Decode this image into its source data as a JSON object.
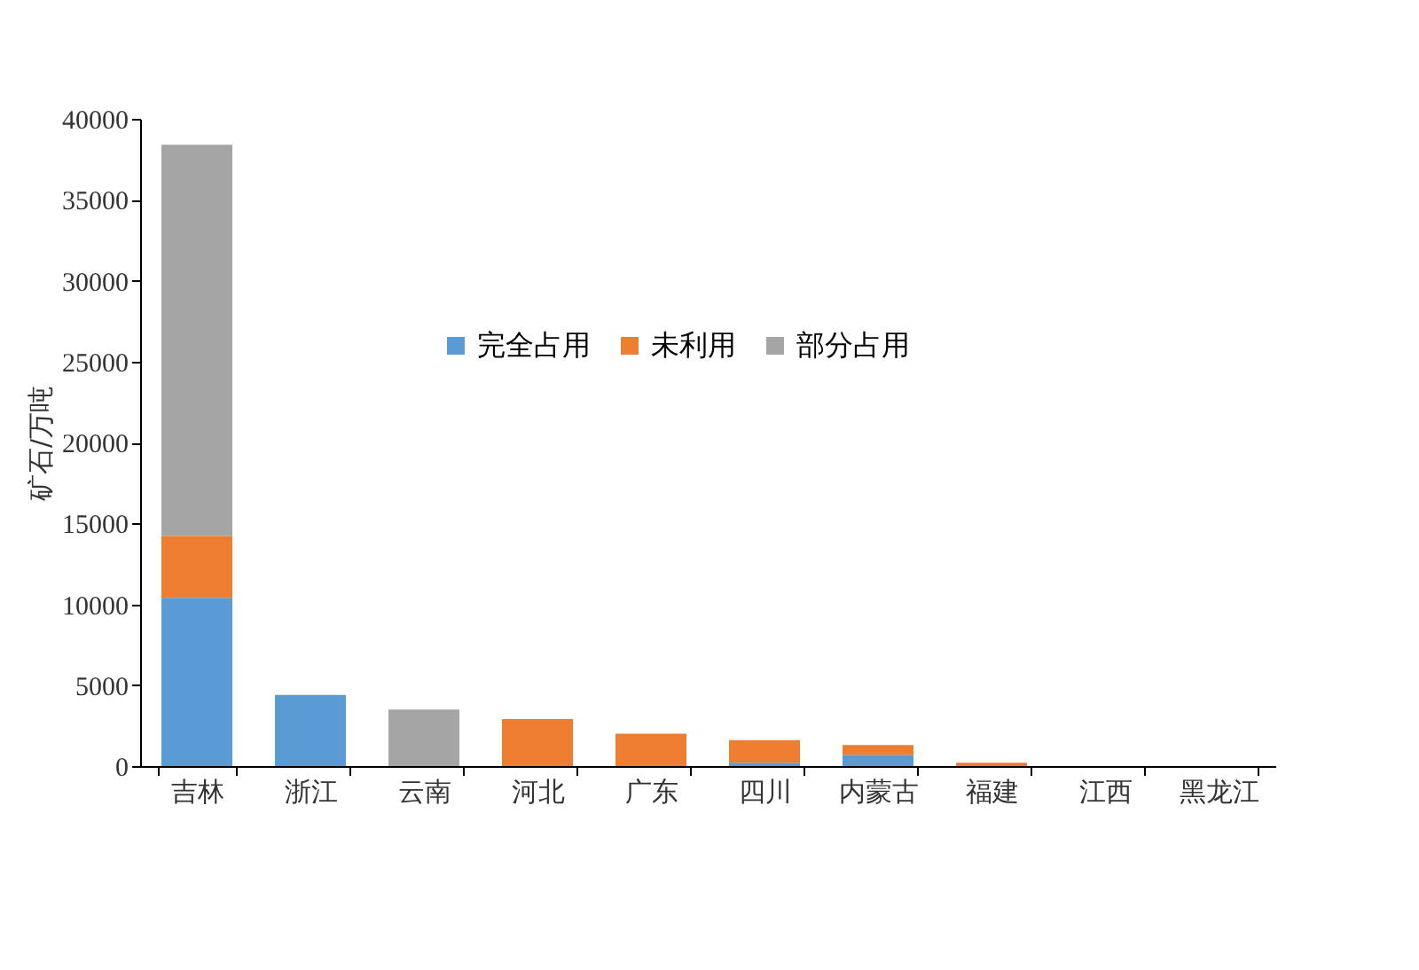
{
  "chart_data": {
    "type": "bar",
    "stacked": true,
    "ylabel": "矿石/万吨",
    "categories": [
      "吉林",
      "浙江",
      "云南",
      "河北",
      "广东",
      "四川",
      "内蒙古",
      "福建",
      "江西",
      "黑龙江"
    ],
    "series": [
      {
        "name": "完全占用",
        "color": "#5b9bd5",
        "values": [
          10400,
          4400,
          0,
          0,
          0,
          200,
          700,
          0,
          0,
          0
        ]
      },
      {
        "name": "未利用",
        "color": "#ed7d31",
        "values": [
          3800,
          0,
          0,
          2900,
          2000,
          1400,
          600,
          200,
          0,
          0
        ]
      },
      {
        "name": "部分占用",
        "color": "#a5a5a5",
        "values": [
          24200,
          0,
          3500,
          0,
          0,
          0,
          0,
          0,
          0,
          0
        ]
      }
    ],
    "ylim": [
      0,
      40000
    ],
    "yticks": [
      0,
      5000,
      10000,
      15000,
      20000,
      25000,
      30000,
      35000,
      40000
    ],
    "grid": false,
    "legend": "top"
  }
}
